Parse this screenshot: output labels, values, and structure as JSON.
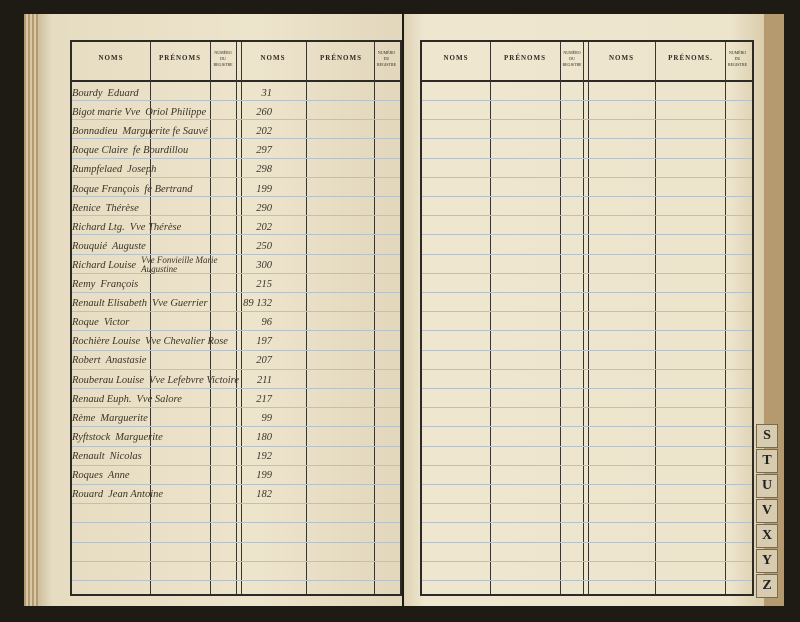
{
  "headers": {
    "noms": "NOMS",
    "prenoms": "PRÉNOMS",
    "prenoms_alt": "PRÉNOMS.",
    "numero": "NUMÉRO DU REGISTRE"
  },
  "entries": [
    {
      "nom": "Bourdy",
      "prenom": "Eduard",
      "numero": "31"
    },
    {
      "nom": "Bigot marie Vve",
      "prenom": "Oriol Philippe",
      "numero": "260"
    },
    {
      "nom": "Bonnadieu",
      "prenom": "Marguerite fe Sauvé",
      "numero": "202"
    },
    {
      "nom": "Roque Claire",
      "prenom": "fe Bourdillou",
      "numero": "297"
    },
    {
      "nom": "Rumpfelaed",
      "prenom": "Joseph",
      "numero": "298"
    },
    {
      "nom": "Roque François",
      "prenom": "fe Bertrand",
      "numero": "199"
    },
    {
      "nom": "Renice",
      "prenom": "Thérèse",
      "numero": "290"
    },
    {
      "nom": "Richard Ltg.",
      "prenom": "Vve Thérèse",
      "numero": "202"
    },
    {
      "nom": "Rouquié",
      "prenom": "Auguste",
      "numero": "250"
    },
    {
      "nom": "Richard Louise",
      "prenom": "Vve Fonvieille Marie Augustine",
      "numero": "300"
    },
    {
      "nom": "Remy",
      "prenom": "François",
      "numero": "215"
    },
    {
      "nom": "Renault Elisabeth",
      "prenom": "Vve Guerrier",
      "numero": "89 132"
    },
    {
      "nom": "Roque",
      "prenom": "Victor",
      "numero": "96"
    },
    {
      "nom": "Rochière Louise",
      "prenom": "Vve Chevalier Rose",
      "numero": "197"
    },
    {
      "nom": "Robert",
      "prenom": "Anastasie",
      "numero": "207"
    },
    {
      "nom": "Rouberau Louise",
      "prenom": "Vve Lefebvre Victoire",
      "numero": "211"
    },
    {
      "nom": "Renaud Euph.",
      "prenom": "Vve Salore",
      "numero": "217"
    },
    {
      "nom": "Rème",
      "prenom": "Marguerite",
      "numero": "99"
    },
    {
      "nom": "Ryftstock",
      "prenom": "Marguerite",
      "numero": "180"
    },
    {
      "nom": "Renault",
      "prenom": "Nicolas",
      "numero": "192"
    },
    {
      "nom": "Roques",
      "prenom": "Anne",
      "numero": "199"
    },
    {
      "nom": "Rouard",
      "prenom": "Jean Antoine",
      "numero": "182"
    }
  ],
  "index_tabs": [
    "S",
    "T",
    "U",
    "V",
    "X",
    "Y",
    "Z"
  ],
  "colors": {
    "paper": "#ece3cb",
    "ink": "#3b3326",
    "ruling": "#b9c1c6",
    "background": "#1e1a14"
  }
}
